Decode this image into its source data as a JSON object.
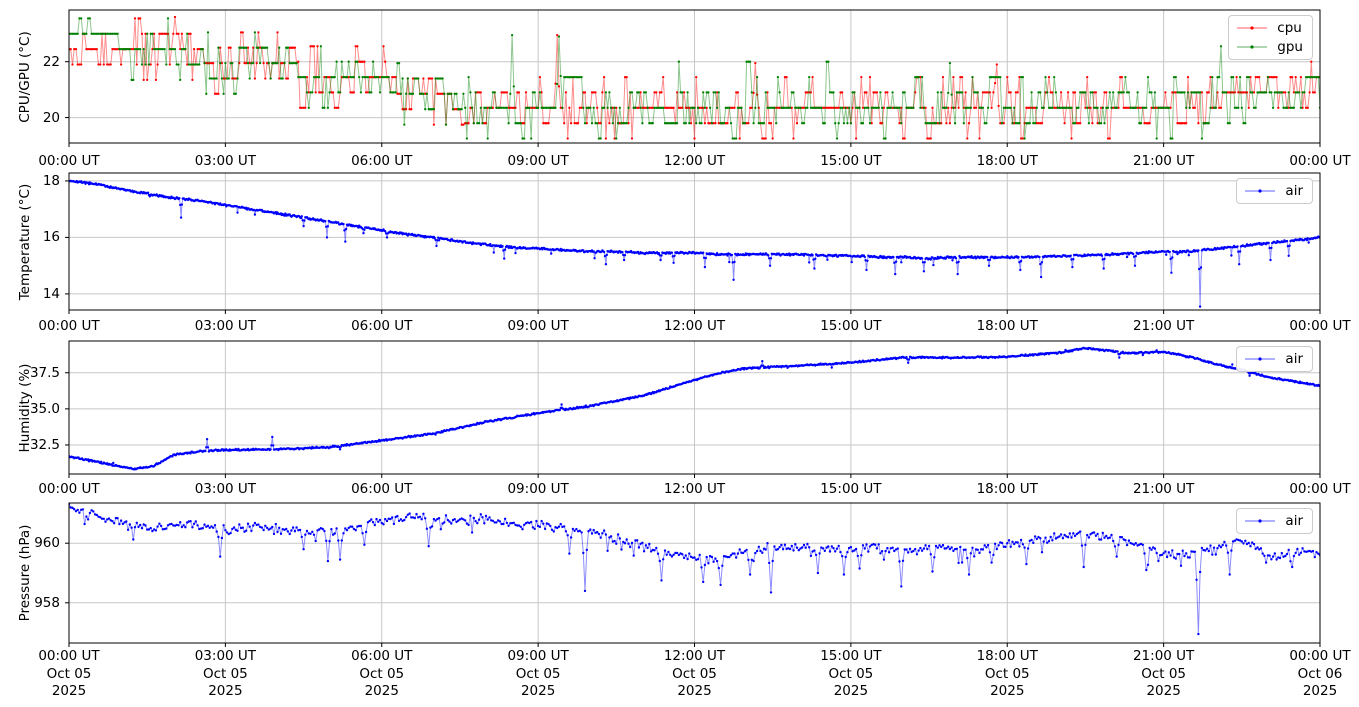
{
  "figure": {
    "background": "#ffffff",
    "axis_color": "#000000",
    "grid_color": "#c7c7c7",
    "series_colors": {
      "cpu": "#ff0000",
      "gpu": "#008000",
      "air": "#0000ff"
    }
  },
  "xaxis": {
    "xlim_hours": [
      0,
      24
    ],
    "tick_hours": [
      0,
      3,
      6,
      9,
      12,
      15,
      18,
      21,
      24
    ],
    "tick_labels": [
      "00:00 UT",
      "03:00 UT",
      "06:00 UT",
      "09:00 UT",
      "12:00 UT",
      "15:00 UT",
      "18:00 UT",
      "21:00 UT",
      "00:00 UT"
    ],
    "bottom_dates": [
      "Oct 05",
      "Oct 05",
      "Oct 05",
      "Oct 05",
      "Oct 05",
      "Oct 05",
      "Oct 05",
      "Oct 05",
      "Oct 06"
    ],
    "bottom_years": [
      "2025",
      "2025",
      "2025",
      "2025",
      "2025",
      "2025",
      "2025",
      "2025",
      "2025"
    ]
  },
  "chart_data": [
    {
      "type": "line",
      "ylabel": "CPU/GPU (°C)",
      "yticks": [
        20,
        22
      ],
      "ytick_labels": [
        "20",
        "22"
      ],
      "ylim": [
        19.09,
        23.85
      ],
      "legend": [
        {
          "label": "cpu",
          "color": "#ff0000"
        },
        {
          "label": "gpu",
          "color": "#008000"
        }
      ],
      "series": [
        {
          "name": "cpu",
          "color": "#ff0000",
          "kind": "step",
          "seed": 7,
          "dt_min": 2,
          "step": 0.55,
          "levels": [
            [
              0,
              22.45
            ],
            [
              2.6,
              21.95
            ],
            [
              4.4,
              21.45
            ],
            [
              6.3,
              20.85
            ],
            [
              7.6,
              20.35
            ],
            [
              21.9,
              20.9
            ]
          ],
          "spikes": [
            [
              9.37,
              22.95
            ],
            [
              13.15,
              21.95
            ],
            [
              17.8,
              21.9
            ]
          ]
        },
        {
          "name": "gpu",
          "color": "#008000",
          "kind": "step",
          "seed": 13,
          "dt_min": 2,
          "step": 0.55,
          "levels": [
            [
              0,
              23.0
            ],
            [
              0.95,
              22.45
            ],
            [
              2.6,
              21.95
            ],
            [
              4.4,
              21.45
            ],
            [
              6.3,
              20.85
            ],
            [
              7.6,
              20.35
            ],
            [
              21.9,
              20.9
            ]
          ],
          "spikes": [
            [
              8.5,
              22.95
            ],
            [
              9.4,
              22.9
            ],
            [
              16.9,
              21.95
            ]
          ]
        }
      ]
    },
    {
      "type": "line",
      "ylabel": "Temperature (°C)",
      "yticks": [
        14,
        16,
        18
      ],
      "ytick_labels": [
        "14",
        "16",
        "18"
      ],
      "ylim": [
        13.43,
        18.28
      ],
      "legend": [
        {
          "label": "air",
          "color": "#0000ff"
        }
      ],
      "series": [
        {
          "name": "air",
          "color": "#0000ff",
          "kind": "trend",
          "seed": 21,
          "dt_min": 1,
          "noise": 0.022,
          "jitter_prob": 0.015,
          "jitter_amp": 0.3,
          "jitter_sign": -1,
          "trend": [
            [
              0,
              18.0
            ],
            [
              0.5,
              17.9
            ],
            [
              1,
              17.7
            ],
            [
              1.5,
              17.55
            ],
            [
              2,
              17.4
            ],
            [
              2.5,
              17.3
            ],
            [
              3,
              17.15
            ],
            [
              3.5,
              17.0
            ],
            [
              4,
              16.85
            ],
            [
              4.5,
              16.7
            ],
            [
              5,
              16.55
            ],
            [
              5.5,
              16.4
            ],
            [
              6,
              16.25
            ],
            [
              6.5,
              16.1
            ],
            [
              7,
              16.0
            ],
            [
              7.5,
              15.85
            ],
            [
              8,
              15.75
            ],
            [
              8.5,
              15.65
            ],
            [
              9,
              15.6
            ],
            [
              9.5,
              15.55
            ],
            [
              10,
              15.5
            ],
            [
              10.5,
              15.5
            ],
            [
              11,
              15.45
            ],
            [
              11.5,
              15.45
            ],
            [
              12,
              15.45
            ],
            [
              12.5,
              15.4
            ],
            [
              13,
              15.4
            ],
            [
              14,
              15.4
            ],
            [
              14.5,
              15.35
            ],
            [
              15,
              15.35
            ],
            [
              15.5,
              15.3
            ],
            [
              16,
              15.3
            ],
            [
              16.5,
              15.25
            ],
            [
              17,
              15.3
            ],
            [
              18,
              15.3
            ],
            [
              18.5,
              15.3
            ],
            [
              19,
              15.35
            ],
            [
              19.5,
              15.35
            ],
            [
              20,
              15.4
            ],
            [
              20.5,
              15.45
            ],
            [
              21,
              15.5
            ],
            [
              21.5,
              15.5
            ],
            [
              22,
              15.6
            ],
            [
              22.5,
              15.7
            ],
            [
              23,
              15.8
            ],
            [
              23.5,
              15.9
            ],
            [
              24,
              16.0
            ]
          ],
          "spikes": [
            [
              1.55,
              17.45
            ],
            [
              2.15,
              16.7
            ],
            [
              4.5,
              16.4
            ],
            [
              4.95,
              16.0
            ],
            [
              5.3,
              15.85
            ],
            [
              5.65,
              16.15
            ],
            [
              6.1,
              16.0
            ],
            [
              7.05,
              15.7
            ],
            [
              8.35,
              15.25
            ],
            [
              10.3,
              15.05
            ],
            [
              10.65,
              15.2
            ],
            [
              11.35,
              15.2
            ],
            [
              11.6,
              15.1
            ],
            [
              12.2,
              14.95
            ],
            [
              12.75,
              14.5
            ],
            [
              13.45,
              15.0
            ],
            [
              14.3,
              14.9
            ],
            [
              15.3,
              14.85
            ],
            [
              15.85,
              14.7
            ],
            [
              16.4,
              14.8
            ],
            [
              17.05,
              14.7
            ],
            [
              17.65,
              15.0
            ],
            [
              18.25,
              14.85
            ],
            [
              18.65,
              14.6
            ],
            [
              19.25,
              14.95
            ],
            [
              19.85,
              14.9
            ],
            [
              20.45,
              15.0
            ],
            [
              21.15,
              14.75
            ],
            [
              21.7,
              13.55
            ],
            [
              22.45,
              15.05
            ],
            [
              23.05,
              15.2
            ],
            [
              23.4,
              15.35
            ]
          ]
        }
      ]
    },
    {
      "type": "line",
      "ylabel": "Humidity (%)",
      "yticks": [
        32.5,
        35.0,
        37.5
      ],
      "ytick_labels": [
        "32.5",
        "35.0",
        "37.5"
      ],
      "ylim": [
        30.49,
        39.7
      ],
      "legend": [
        {
          "label": "air",
          "color": "#0000ff"
        }
      ],
      "series": [
        {
          "name": "air",
          "color": "#0000ff",
          "kind": "trend",
          "seed": 33,
          "dt_min": 1,
          "noise": 0.035,
          "jitter_prob": 0.008,
          "jitter_amp": 0.25,
          "jitter_sign": 0,
          "trend": [
            [
              0,
              31.7
            ],
            [
              0.5,
              31.35
            ],
            [
              1,
              31.0
            ],
            [
              1.25,
              30.85
            ],
            [
              1.6,
              31.0
            ],
            [
              2,
              31.8
            ],
            [
              2.5,
              32.05
            ],
            [
              3,
              32.15
            ],
            [
              4,
              32.2
            ],
            [
              5,
              32.35
            ],
            [
              6,
              32.8
            ],
            [
              7,
              33.3
            ],
            [
              8,
              34.1
            ],
            [
              9,
              34.7
            ],
            [
              10,
              35.2
            ],
            [
              11,
              35.9
            ],
            [
              12,
              37.0
            ],
            [
              12.5,
              37.5
            ],
            [
              13,
              37.8
            ],
            [
              14,
              38.0
            ],
            [
              15,
              38.2
            ],
            [
              16,
              38.55
            ],
            [
              17,
              38.55
            ],
            [
              18,
              38.6
            ],
            [
              19,
              38.9
            ],
            [
              19.5,
              39.2
            ],
            [
              20,
              39.0
            ],
            [
              20.3,
              38.85
            ],
            [
              21,
              38.95
            ],
            [
              21.5,
              38.6
            ],
            [
              22,
              38.1
            ],
            [
              22.5,
              37.7
            ],
            [
              23,
              37.2
            ],
            [
              23.5,
              36.9
            ],
            [
              24,
              36.6
            ]
          ],
          "spikes": [
            [
              2.65,
              32.9
            ],
            [
              3.9,
              33.05
            ],
            [
              5.2,
              32.2
            ],
            [
              9.45,
              35.3
            ],
            [
              13.3,
              38.3
            ],
            [
              16.1,
              38.2
            ],
            [
              20.15,
              38.55
            ],
            [
              22.65,
              37.3
            ]
          ]
        }
      ]
    },
    {
      "type": "line",
      "ylabel": "Pressure (hPa)",
      "yticks": [
        958,
        960
      ],
      "ytick_labels": [
        "958",
        "960"
      ],
      "ylim": [
        956.65,
        961.35
      ],
      "legend": [
        {
          "label": "air",
          "color": "#0000ff"
        }
      ],
      "series": [
        {
          "name": "air",
          "color": "#0000ff",
          "kind": "trend",
          "seed": 55,
          "dt_min": 2,
          "noise": 0.09,
          "jitter_prob": 0.055,
          "jitter_amp": 0.45,
          "jitter_sign": -1,
          "trend": [
            [
              0,
              961.25
            ],
            [
              0.4,
              961.05
            ],
            [
              0.8,
              960.75
            ],
            [
              1.3,
              960.55
            ],
            [
              1.8,
              960.5
            ],
            [
              2.2,
              960.7
            ],
            [
              2.6,
              960.55
            ],
            [
              3.1,
              960.45
            ],
            [
              3.6,
              960.6
            ],
            [
              4.1,
              960.45
            ],
            [
              4.6,
              960.4
            ],
            [
              5.1,
              960.4
            ],
            [
              5.6,
              960.55
            ],
            [
              6.1,
              960.8
            ],
            [
              6.6,
              960.9
            ],
            [
              7.1,
              960.8
            ],
            [
              7.6,
              960.75
            ],
            [
              8,
              960.85
            ],
            [
              8.5,
              960.65
            ],
            [
              9,
              960.6
            ],
            [
              9.5,
              960.5
            ],
            [
              10,
              960.4
            ],
            [
              10.5,
              960.15
            ],
            [
              11,
              959.9
            ],
            [
              11.5,
              959.7
            ],
            [
              12,
              959.5
            ],
            [
              12.3,
              959.45
            ],
            [
              12.7,
              959.6
            ],
            [
              13.2,
              959.8
            ],
            [
              13.7,
              959.9
            ],
            [
              14.2,
              959.85
            ],
            [
              14.7,
              959.8
            ],
            [
              15.2,
              959.85
            ],
            [
              15.7,
              959.8
            ],
            [
              16.2,
              959.75
            ],
            [
              16.7,
              959.85
            ],
            [
              17.2,
              959.8
            ],
            [
              17.7,
              959.85
            ],
            [
              18.2,
              960.0
            ],
            [
              18.7,
              960.15
            ],
            [
              19.2,
              960.25
            ],
            [
              19.6,
              960.3
            ],
            [
              20,
              960.2
            ],
            [
              20.4,
              960.05
            ],
            [
              20.8,
              959.75
            ],
            [
              21.2,
              959.6
            ],
            [
              21.6,
              959.7
            ],
            [
              22,
              959.85
            ],
            [
              22.4,
              960.1
            ],
            [
              22.8,
              959.8
            ],
            [
              23.1,
              959.5
            ],
            [
              23.4,
              959.65
            ],
            [
              23.7,
              959.75
            ],
            [
              24,
              959.6
            ]
          ],
          "spikes": [
            [
              0.35,
              960.8
            ],
            [
              2.9,
              959.55
            ],
            [
              4.5,
              959.8
            ],
            [
              4.95,
              959.4
            ],
            [
              5.2,
              959.45
            ],
            [
              5.65,
              959.95
            ],
            [
              6.9,
              959.9
            ],
            [
              9.6,
              959.65
            ],
            [
              9.9,
              958.4
            ],
            [
              11.35,
              958.75
            ],
            [
              12.15,
              958.7
            ],
            [
              12.5,
              958.6
            ],
            [
              13.05,
              958.95
            ],
            [
              13.45,
              958.35
            ],
            [
              14.35,
              959.0
            ],
            [
              14.85,
              958.95
            ],
            [
              15.15,
              959.15
            ],
            [
              15.95,
              958.55
            ],
            [
              16.55,
              959.05
            ],
            [
              17.25,
              958.95
            ],
            [
              17.7,
              959.35
            ],
            [
              18.35,
              959.3
            ],
            [
              19.45,
              959.2
            ],
            [
              20.1,
              959.55
            ],
            [
              20.65,
              959.1
            ],
            [
              21.67,
              956.95
            ],
            [
              22.25,
              958.95
            ],
            [
              22.95,
              959.35
            ],
            [
              23.45,
              959.2
            ]
          ]
        }
      ]
    }
  ]
}
